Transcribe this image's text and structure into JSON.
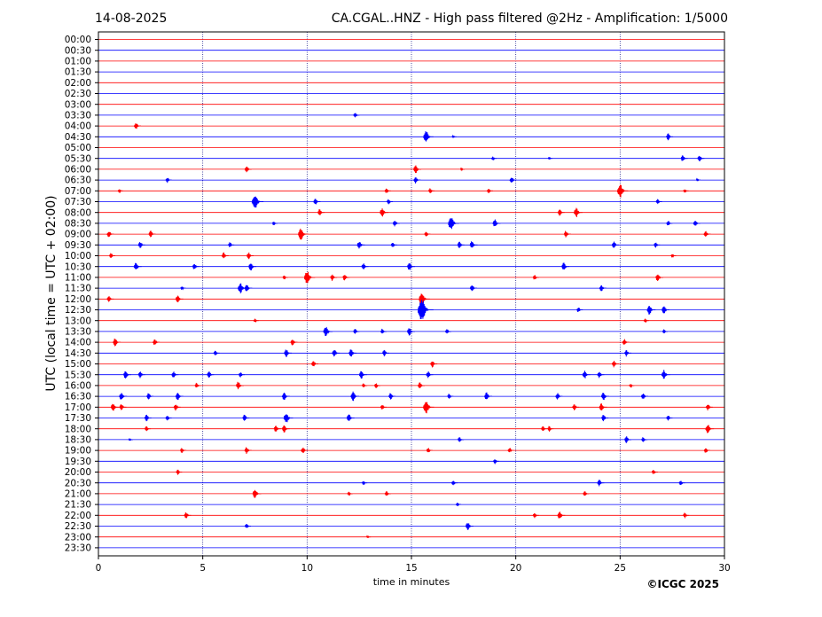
{
  "header": {
    "date": "14-08-2025",
    "title": "CA.CGAL..HNZ - High pass filtered @2Hz - Amplification: 1/5000"
  },
  "footer": {
    "copyright": "©ICGC 2025"
  },
  "chart_data": {
    "type": "line",
    "title": "CA.CGAL..HNZ - High pass filtered @2Hz - Amplification: 1/5000",
    "xlabel": "time in minutes",
    "ylabel": "UTC (local time = UTC + 02:00)",
    "xlim": [
      0,
      30
    ],
    "xticks": [
      0,
      5,
      10,
      15,
      20,
      25,
      30
    ],
    "vertical_grid": [
      5,
      10,
      15,
      20,
      25
    ],
    "row_colors": [
      "#ff0000",
      "#0000ff"
    ],
    "rows": [
      "00:00",
      "00:30",
      "01:00",
      "01:30",
      "02:00",
      "02:30",
      "03:00",
      "03:30",
      "04:00",
      "04:30",
      "05:00",
      "05:30",
      "06:00",
      "06:30",
      "07:00",
      "07:30",
      "08:00",
      "08:30",
      "09:00",
      "09:30",
      "10:00",
      "10:30",
      "11:00",
      "11:30",
      "12:00",
      "12:30",
      "13:00",
      "13:30",
      "14:00",
      "14:30",
      "15:00",
      "15:30",
      "16:00",
      "16:30",
      "17:00",
      "17:30",
      "18:00",
      "18:30",
      "19:00",
      "19:30",
      "20:00",
      "20:30",
      "21:00",
      "21:30",
      "22:00",
      "22:30",
      "23:00",
      "23:30"
    ],
    "events": [
      {
        "row": "03:30",
        "t": 12.3,
        "amp": 0.4
      },
      {
        "row": "04:00",
        "t": 1.8,
        "amp": 0.5
      },
      {
        "row": "04:30",
        "t": 15.7,
        "amp": 0.9
      },
      {
        "row": "04:30",
        "t": 17.0,
        "amp": 0.2
      },
      {
        "row": "04:30",
        "t": 27.3,
        "amp": 0.5
      },
      {
        "row": "05:30",
        "t": 18.9,
        "amp": 0.3
      },
      {
        "row": "05:30",
        "t": 21.6,
        "amp": 0.2
      },
      {
        "row": "05:30",
        "t": 28.0,
        "amp": 0.5
      },
      {
        "row": "05:30",
        "t": 28.8,
        "amp": 0.5
      },
      {
        "row": "06:00",
        "t": 7.1,
        "amp": 0.5
      },
      {
        "row": "06:00",
        "t": 15.2,
        "amp": 0.6
      },
      {
        "row": "06:00",
        "t": 17.4,
        "amp": 0.2
      },
      {
        "row": "06:30",
        "t": 3.3,
        "amp": 0.4
      },
      {
        "row": "06:30",
        "t": 15.2,
        "amp": 0.5
      },
      {
        "row": "06:30",
        "t": 19.8,
        "amp": 0.5
      },
      {
        "row": "06:30",
        "t": 28.7,
        "amp": 0.2
      },
      {
        "row": "07:00",
        "t": 1.0,
        "amp": 0.3
      },
      {
        "row": "07:00",
        "t": 13.8,
        "amp": 0.4
      },
      {
        "row": "07:00",
        "t": 15.9,
        "amp": 0.4
      },
      {
        "row": "07:00",
        "t": 18.7,
        "amp": 0.4
      },
      {
        "row": "07:00",
        "t": 25.0,
        "amp": 1.0
      },
      {
        "row": "07:00",
        "t": 28.1,
        "amp": 0.3
      },
      {
        "row": "07:30",
        "t": 7.5,
        "amp": 1.1
      },
      {
        "row": "07:30",
        "t": 10.4,
        "amp": 0.5
      },
      {
        "row": "07:30",
        "t": 13.9,
        "amp": 0.4
      },
      {
        "row": "07:30",
        "t": 26.8,
        "amp": 0.4
      },
      {
        "row": "08:00",
        "t": 10.6,
        "amp": 0.5
      },
      {
        "row": "08:00",
        "t": 13.6,
        "amp": 0.7
      },
      {
        "row": "08:00",
        "t": 22.1,
        "amp": 0.5
      },
      {
        "row": "08:00",
        "t": 22.9,
        "amp": 0.7
      },
      {
        "row": "08:30",
        "t": 8.4,
        "amp": 0.3
      },
      {
        "row": "08:30",
        "t": 14.2,
        "amp": 0.5
      },
      {
        "row": "08:30",
        "t": 16.9,
        "amp": 1.0
      },
      {
        "row": "08:30",
        "t": 19.0,
        "amp": 0.6
      },
      {
        "row": "08:30",
        "t": 27.3,
        "amp": 0.4
      },
      {
        "row": "08:30",
        "t": 28.6,
        "amp": 0.5
      },
      {
        "row": "09:00",
        "t": 0.5,
        "amp": 0.5
      },
      {
        "row": "09:00",
        "t": 2.5,
        "amp": 0.5
      },
      {
        "row": "09:00",
        "t": 9.7,
        "amp": 0.9
      },
      {
        "row": "09:00",
        "t": 15.7,
        "amp": 0.4
      },
      {
        "row": "09:00",
        "t": 22.4,
        "amp": 0.5
      },
      {
        "row": "09:00",
        "t": 29.1,
        "amp": 0.5
      },
      {
        "row": "09:30",
        "t": 2.0,
        "amp": 0.5
      },
      {
        "row": "09:30",
        "t": 6.3,
        "amp": 0.4
      },
      {
        "row": "09:30",
        "t": 12.5,
        "amp": 0.6
      },
      {
        "row": "09:30",
        "t": 14.1,
        "amp": 0.4
      },
      {
        "row": "09:30",
        "t": 17.3,
        "amp": 0.5
      },
      {
        "row": "09:30",
        "t": 17.9,
        "amp": 0.6
      },
      {
        "row": "09:30",
        "t": 24.7,
        "amp": 0.5
      },
      {
        "row": "09:30",
        "t": 26.7,
        "amp": 0.4
      },
      {
        "row": "10:00",
        "t": 0.6,
        "amp": 0.4
      },
      {
        "row": "10:00",
        "t": 6.0,
        "amp": 0.5
      },
      {
        "row": "10:00",
        "t": 7.2,
        "amp": 0.5
      },
      {
        "row": "10:00",
        "t": 27.5,
        "amp": 0.3
      },
      {
        "row": "10:30",
        "t": 1.8,
        "amp": 0.6
      },
      {
        "row": "10:30",
        "t": 4.6,
        "amp": 0.5
      },
      {
        "row": "10:30",
        "t": 7.3,
        "amp": 0.6
      },
      {
        "row": "10:30",
        "t": 12.7,
        "amp": 0.5
      },
      {
        "row": "10:30",
        "t": 14.9,
        "amp": 0.6
      },
      {
        "row": "10:30",
        "t": 22.3,
        "amp": 0.6
      },
      {
        "row": "11:00",
        "t": 8.9,
        "amp": 0.3
      },
      {
        "row": "11:00",
        "t": 10.0,
        "amp": 1.0
      },
      {
        "row": "11:00",
        "t": 11.2,
        "amp": 0.5
      },
      {
        "row": "11:00",
        "t": 11.8,
        "amp": 0.5
      },
      {
        "row": "11:00",
        "t": 20.9,
        "amp": 0.4
      },
      {
        "row": "11:00",
        "t": 26.8,
        "amp": 0.6
      },
      {
        "row": "11:30",
        "t": 4.0,
        "amp": 0.3
      },
      {
        "row": "11:30",
        "t": 6.8,
        "amp": 0.8
      },
      {
        "row": "11:30",
        "t": 7.1,
        "amp": 0.6
      },
      {
        "row": "11:30",
        "t": 17.9,
        "amp": 0.5
      },
      {
        "row": "11:30",
        "t": 24.1,
        "amp": 0.5
      },
      {
        "row": "12:00",
        "t": 0.5,
        "amp": 0.5
      },
      {
        "row": "12:00",
        "t": 3.8,
        "amp": 0.6
      },
      {
        "row": "12:00",
        "t": 15.5,
        "amp": 1.0
      },
      {
        "row": "12:30",
        "t": 15.5,
        "amp": 1.6
      },
      {
        "row": "12:30",
        "t": 23.0,
        "amp": 0.4
      },
      {
        "row": "12:30",
        "t": 26.4,
        "amp": 0.7
      },
      {
        "row": "12:30",
        "t": 27.1,
        "amp": 0.6
      },
      {
        "row": "13:00",
        "t": 7.5,
        "amp": 0.3
      },
      {
        "row": "13:00",
        "t": 26.2,
        "amp": 0.3
      },
      {
        "row": "13:30",
        "t": 10.9,
        "amp": 0.8
      },
      {
        "row": "13:30",
        "t": 12.3,
        "amp": 0.4
      },
      {
        "row": "13:30",
        "t": 13.6,
        "amp": 0.4
      },
      {
        "row": "13:30",
        "t": 14.9,
        "amp": 0.6
      },
      {
        "row": "13:30",
        "t": 16.7,
        "amp": 0.4
      },
      {
        "row": "13:30",
        "t": 27.1,
        "amp": 0.3
      },
      {
        "row": "14:00",
        "t": 0.8,
        "amp": 0.6
      },
      {
        "row": "14:00",
        "t": 2.7,
        "amp": 0.5
      },
      {
        "row": "14:00",
        "t": 9.3,
        "amp": 0.5
      },
      {
        "row": "14:00",
        "t": 25.2,
        "amp": 0.5
      },
      {
        "row": "14:30",
        "t": 5.6,
        "amp": 0.4
      },
      {
        "row": "14:30",
        "t": 9.0,
        "amp": 0.6
      },
      {
        "row": "14:30",
        "t": 11.3,
        "amp": 0.6
      },
      {
        "row": "14:30",
        "t": 12.1,
        "amp": 0.6
      },
      {
        "row": "14:30",
        "t": 13.7,
        "amp": 0.5
      },
      {
        "row": "14:30",
        "t": 25.3,
        "amp": 0.5
      },
      {
        "row": "15:00",
        "t": 10.3,
        "amp": 0.5
      },
      {
        "row": "15:00",
        "t": 16.0,
        "amp": 0.5
      },
      {
        "row": "15:00",
        "t": 24.7,
        "amp": 0.5
      },
      {
        "row": "15:30",
        "t": 1.3,
        "amp": 0.6
      },
      {
        "row": "15:30",
        "t": 2.0,
        "amp": 0.5
      },
      {
        "row": "15:30",
        "t": 3.6,
        "amp": 0.5
      },
      {
        "row": "15:30",
        "t": 5.3,
        "amp": 0.5
      },
      {
        "row": "15:30",
        "t": 6.8,
        "amp": 0.4
      },
      {
        "row": "15:30",
        "t": 12.6,
        "amp": 0.6
      },
      {
        "row": "15:30",
        "t": 15.8,
        "amp": 0.5
      },
      {
        "row": "15:30",
        "t": 23.3,
        "amp": 0.6
      },
      {
        "row": "15:30",
        "t": 24.0,
        "amp": 0.5
      },
      {
        "row": "15:30",
        "t": 27.1,
        "amp": 0.7
      },
      {
        "row": "16:00",
        "t": 4.7,
        "amp": 0.4
      },
      {
        "row": "16:00",
        "t": 6.7,
        "amp": 0.6
      },
      {
        "row": "16:00",
        "t": 12.7,
        "amp": 0.3
      },
      {
        "row": "16:00",
        "t": 13.3,
        "amp": 0.4
      },
      {
        "row": "16:00",
        "t": 15.4,
        "amp": 0.5
      },
      {
        "row": "16:00",
        "t": 25.5,
        "amp": 0.3
      },
      {
        "row": "16:30",
        "t": 1.1,
        "amp": 0.6
      },
      {
        "row": "16:30",
        "t": 2.4,
        "amp": 0.5
      },
      {
        "row": "16:30",
        "t": 3.8,
        "amp": 0.6
      },
      {
        "row": "16:30",
        "t": 8.9,
        "amp": 0.6
      },
      {
        "row": "16:30",
        "t": 12.2,
        "amp": 0.7
      },
      {
        "row": "16:30",
        "t": 14.0,
        "amp": 0.5
      },
      {
        "row": "16:30",
        "t": 16.8,
        "amp": 0.4
      },
      {
        "row": "16:30",
        "t": 18.6,
        "amp": 0.6
      },
      {
        "row": "16:30",
        "t": 22.0,
        "amp": 0.5
      },
      {
        "row": "16:30",
        "t": 24.2,
        "amp": 0.6
      },
      {
        "row": "16:30",
        "t": 26.1,
        "amp": 0.5
      },
      {
        "row": "17:00",
        "t": 0.7,
        "amp": 0.6
      },
      {
        "row": "17:00",
        "t": 1.1,
        "amp": 0.5
      },
      {
        "row": "17:00",
        "t": 3.7,
        "amp": 0.5
      },
      {
        "row": "17:00",
        "t": 13.6,
        "amp": 0.4
      },
      {
        "row": "17:00",
        "t": 15.7,
        "amp": 1.0
      },
      {
        "row": "17:00",
        "t": 22.8,
        "amp": 0.5
      },
      {
        "row": "17:00",
        "t": 24.1,
        "amp": 0.6
      },
      {
        "row": "17:00",
        "t": 29.2,
        "amp": 0.5
      },
      {
        "row": "17:30",
        "t": 2.3,
        "amp": 0.5
      },
      {
        "row": "17:30",
        "t": 3.3,
        "amp": 0.4
      },
      {
        "row": "17:30",
        "t": 7.0,
        "amp": 0.5
      },
      {
        "row": "17:30",
        "t": 9.0,
        "amp": 0.8
      },
      {
        "row": "17:30",
        "t": 12.0,
        "amp": 0.6
      },
      {
        "row": "17:30",
        "t": 24.2,
        "amp": 0.5
      },
      {
        "row": "17:30",
        "t": 27.3,
        "amp": 0.4
      },
      {
        "row": "18:00",
        "t": 2.3,
        "amp": 0.4
      },
      {
        "row": "18:00",
        "t": 8.5,
        "amp": 0.5
      },
      {
        "row": "18:00",
        "t": 8.9,
        "amp": 0.6
      },
      {
        "row": "18:00",
        "t": 21.3,
        "amp": 0.4
      },
      {
        "row": "18:00",
        "t": 21.6,
        "amp": 0.4
      },
      {
        "row": "18:00",
        "t": 29.2,
        "amp": 0.7
      },
      {
        "row": "18:30",
        "t": 1.5,
        "amp": 0.2
      },
      {
        "row": "18:30",
        "t": 17.3,
        "amp": 0.4
      },
      {
        "row": "18:30",
        "t": 25.3,
        "amp": 0.5
      },
      {
        "row": "18:30",
        "t": 26.1,
        "amp": 0.4
      },
      {
        "row": "19:00",
        "t": 4.0,
        "amp": 0.4
      },
      {
        "row": "19:00",
        "t": 7.1,
        "amp": 0.5
      },
      {
        "row": "19:00",
        "t": 9.8,
        "amp": 0.5
      },
      {
        "row": "19:00",
        "t": 15.8,
        "amp": 0.4
      },
      {
        "row": "19:00",
        "t": 19.7,
        "amp": 0.4
      },
      {
        "row": "19:00",
        "t": 29.1,
        "amp": 0.4
      },
      {
        "row": "19:30",
        "t": 19.0,
        "amp": 0.4
      },
      {
        "row": "20:00",
        "t": 3.8,
        "amp": 0.4
      },
      {
        "row": "20:00",
        "t": 26.6,
        "amp": 0.4
      },
      {
        "row": "20:30",
        "t": 12.7,
        "amp": 0.3
      },
      {
        "row": "20:30",
        "t": 17.0,
        "amp": 0.4
      },
      {
        "row": "20:30",
        "t": 24.0,
        "amp": 0.5
      },
      {
        "row": "20:30",
        "t": 27.9,
        "amp": 0.4
      },
      {
        "row": "21:00",
        "t": 7.5,
        "amp": 0.7
      },
      {
        "row": "21:00",
        "t": 12.0,
        "amp": 0.3
      },
      {
        "row": "21:00",
        "t": 13.8,
        "amp": 0.4
      },
      {
        "row": "21:00",
        "t": 23.3,
        "amp": 0.4
      },
      {
        "row": "21:30",
        "t": 17.2,
        "amp": 0.3
      },
      {
        "row": "22:00",
        "t": 4.2,
        "amp": 0.5
      },
      {
        "row": "22:00",
        "t": 20.9,
        "amp": 0.4
      },
      {
        "row": "22:00",
        "t": 22.1,
        "amp": 0.6
      },
      {
        "row": "22:00",
        "t": 28.1,
        "amp": 0.4
      },
      {
        "row": "22:30",
        "t": 7.1,
        "amp": 0.4
      },
      {
        "row": "22:30",
        "t": 17.7,
        "amp": 0.6
      },
      {
        "row": "23:00",
        "t": 12.9,
        "amp": 0.2
      }
    ]
  }
}
